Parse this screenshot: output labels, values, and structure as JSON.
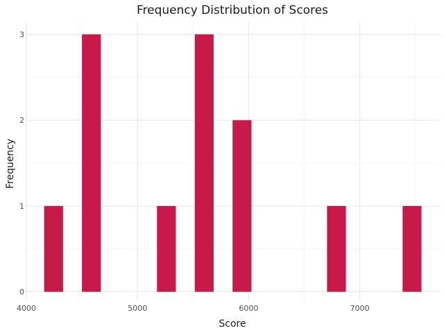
{
  "chart_data": {
    "type": "bar",
    "subtype": "histogram",
    "title": "Frequency Distribution of Scores",
    "xlabel": "Score",
    "ylabel": "Frequency",
    "xlim": [
      4000,
      7720
    ],
    "ylim": [
      -0.1,
      3.15
    ],
    "x_ticks": [
      4000,
      5000,
      6000,
      7000
    ],
    "y_ticks": [
      0,
      1,
      2,
      3
    ],
    "grid": true,
    "bar_color": "#c8194b",
    "bins": [
      {
        "start": 4160,
        "end": 4330,
        "count": 1
      },
      {
        "start": 4500,
        "end": 4670,
        "count": 3
      },
      {
        "start": 5175,
        "end": 5345,
        "count": 1
      },
      {
        "start": 5515,
        "end": 5685,
        "count": 3
      },
      {
        "start": 5855,
        "end": 6025,
        "count": 2
      },
      {
        "start": 6705,
        "end": 6875,
        "count": 1
      },
      {
        "start": 7385,
        "end": 7555,
        "count": 1
      }
    ]
  }
}
